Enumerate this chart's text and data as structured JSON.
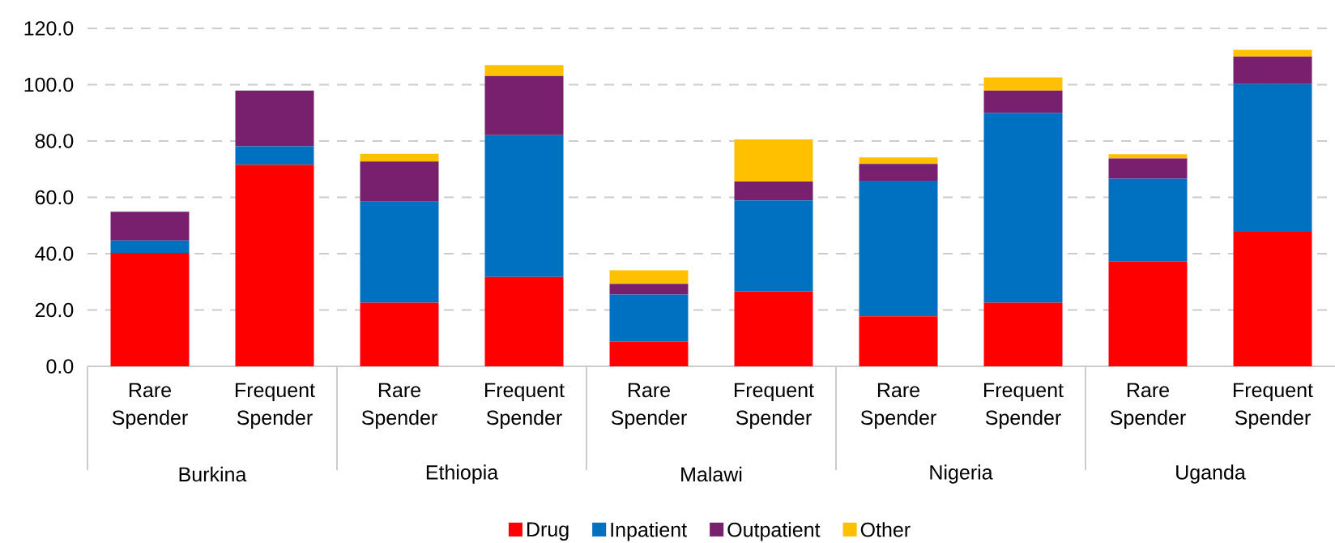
{
  "chart_data": {
    "type": "bar",
    "stacked": true,
    "categories": [
      "Rare Spender",
      "Frequent Spender",
      "Rare Spender",
      "Frequent Spender",
      "Rare Spender",
      "Frequent Spender",
      "Rare Spender",
      "Frequent Spender",
      "Rare Spender",
      "Frequent Spender"
    ],
    "series": [
      {
        "name": "Drug",
        "color": "#ff0000",
        "values": [
          40.3,
          71.6,
          22.6,
          31.7,
          8.8,
          26.6,
          17.8,
          22.6,
          37.2,
          47.8
        ]
      },
      {
        "name": "Inpatient",
        "color": "#0070c0",
        "values": [
          4.4,
          6.5,
          35.9,
          50.4,
          16.7,
          32.3,
          48.1,
          67.4,
          29.4,
          52.4
        ]
      },
      {
        "name": "Outpatient",
        "color": "#78206e",
        "values": [
          10.2,
          19.8,
          14.2,
          21.0,
          3.8,
          6.7,
          6.0,
          7.9,
          7.2,
          9.8
        ]
      },
      {
        "name": "Other",
        "color": "#ffc000",
        "values": [
          0,
          0,
          2.8,
          3.9,
          4.8,
          15.0,
          2.3,
          4.7,
          1.5,
          2.4
        ]
      }
    ],
    "annotations": [
      "Burkina",
      "Ethiopia",
      "Malawi",
      "Nigeria",
      "Uganda"
    ],
    "ylim": [
      0,
      120
    ],
    "yticks": [
      {
        "value": 0,
        "label": "0.0"
      },
      {
        "value": 20,
        "label": "20.0"
      },
      {
        "value": 40,
        "label": "40.0"
      },
      {
        "value": 60,
        "label": "60.0"
      },
      {
        "value": 80,
        "label": "80.0"
      },
      {
        "value": 100,
        "label": "100.0"
      },
      {
        "value": 120,
        "label": "120.0"
      }
    ],
    "grid": "y",
    "legend": "bottom"
  }
}
